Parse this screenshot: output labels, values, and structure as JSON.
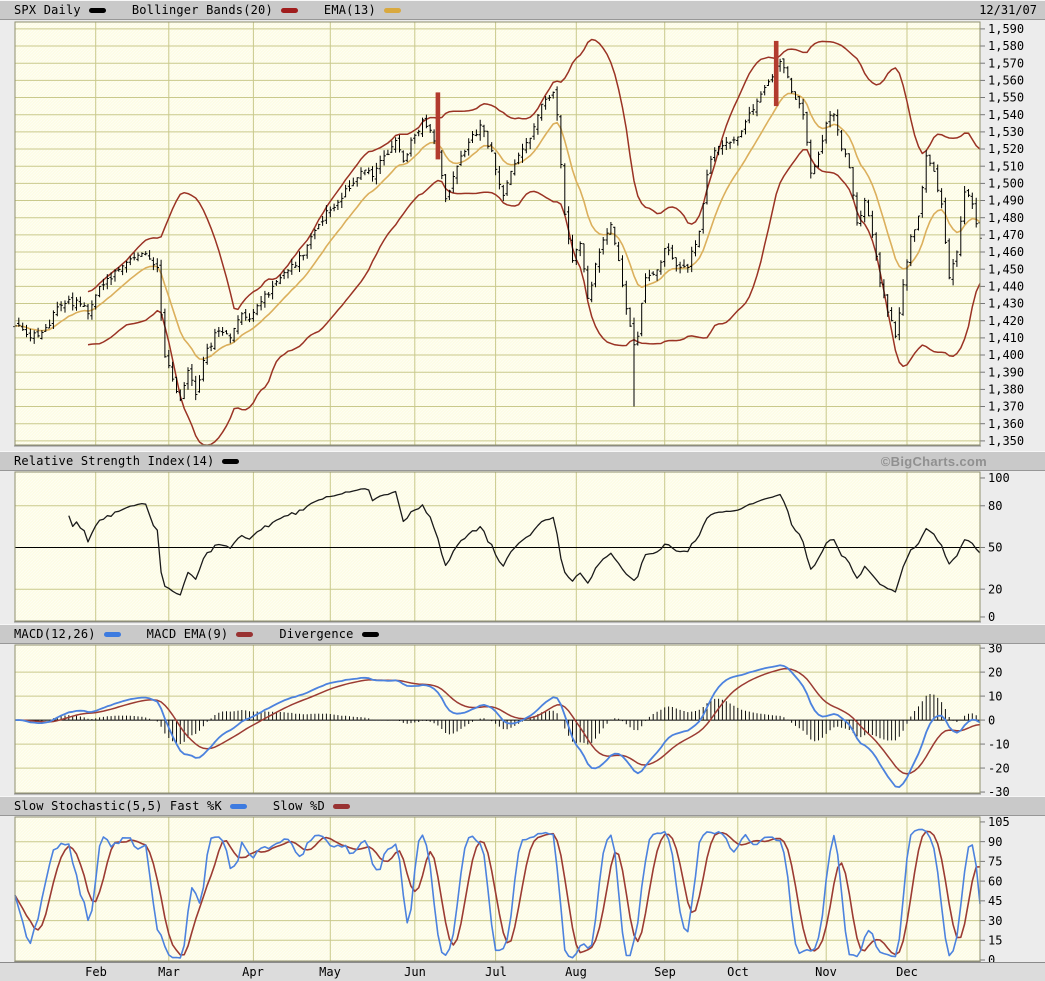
{
  "legends": {
    "main": {
      "items": [
        {
          "label": "SPX Daily",
          "color": "#000000"
        },
        {
          "label": "Bollinger Bands(20)",
          "color": "#a01d1d"
        },
        {
          "label": "EMA(13)",
          "color": "#d9a93f"
        }
      ],
      "date": "12/31/07"
    },
    "rsi": {
      "items": [
        {
          "label": "Relative Strength Index(14)",
          "color": "#000000"
        }
      ],
      "watermark": "©BigCharts.com"
    },
    "macd": {
      "items": [
        {
          "label": "MACD(12,26)",
          "color": "#3d7be0"
        },
        {
          "label": "MACD EMA(9)",
          "color": "#993333"
        },
        {
          "label": "Divergence",
          "color": "#000000"
        }
      ]
    },
    "stoch": {
      "items": [
        {
          "label": "Slow Stochastic(5,5) Fast %K",
          "color": "#3d7be0"
        },
        {
          "label": "Slow %D",
          "color": "#993333"
        }
      ]
    }
  },
  "chart_data": {
    "type": "ohlc-multi-panel",
    "symbol": "SPX",
    "interval": "Daily",
    "as_of": "12/31/07",
    "months": [
      {
        "label": "Feb",
        "day": 21
      },
      {
        "label": "Mar",
        "day": 40
      },
      {
        "label": "Apr",
        "day": 62
      },
      {
        "label": "May",
        "day": 82
      },
      {
        "label": "Jun",
        "day": 104
      },
      {
        "label": "Jul",
        "day": 125
      },
      {
        "label": "Aug",
        "day": 146
      },
      {
        "label": "Sep",
        "day": 169
      },
      {
        "label": "Oct",
        "day": 188
      },
      {
        "label": "Nov",
        "day": 211
      },
      {
        "label": "Dec",
        "day": 232
      }
    ],
    "price": {
      "days": 252,
      "ylim": [
        1350,
        1590
      ],
      "tick_step": 10,
      "tick_labels": [
        "1,590",
        "1,580",
        "1,570",
        "1,560",
        "1,550",
        "1,540",
        "1,530",
        "1,520",
        "1,510",
        "1,500",
        "1,490",
        "1,480",
        "1,470",
        "1,460",
        "1,450",
        "1,440",
        "1,430",
        "1,420",
        "1,410",
        "1,400",
        "1,390",
        "1,380",
        "1,370",
        "1,360",
        "1,350"
      ],
      "close_anchors": [
        [
          0,
          1417
        ],
        [
          4,
          1410
        ],
        [
          8,
          1416
        ],
        [
          12,
          1429
        ],
        [
          16,
          1432
        ],
        [
          19,
          1424
        ],
        [
          22,
          1440
        ],
        [
          26,
          1449
        ],
        [
          30,
          1456
        ],
        [
          34,
          1459
        ],
        [
          37,
          1451
        ],
        [
          39,
          1399
        ],
        [
          41,
          1386
        ],
        [
          43,
          1374
        ],
        [
          45,
          1391
        ],
        [
          47,
          1377
        ],
        [
          50,
          1404
        ],
        [
          53,
          1414
        ],
        [
          56,
          1410
        ],
        [
          59,
          1424
        ],
        [
          61,
          1421
        ],
        [
          64,
          1431
        ],
        [
          67,
          1440
        ],
        [
          70,
          1448
        ],
        [
          73,
          1452
        ],
        [
          76,
          1464
        ],
        [
          79,
          1476
        ],
        [
          81,
          1484
        ],
        [
          84,
          1489
        ],
        [
          87,
          1497
        ],
        [
          90,
          1507
        ],
        [
          93,
          1504
        ],
        [
          96,
          1516
        ],
        [
          99,
          1525
        ],
        [
          101,
          1513
        ],
        [
          104,
          1528
        ],
        [
          106,
          1537
        ],
        [
          108,
          1531
        ],
        [
          110,
          1518
        ],
        [
          112,
          1491
        ],
        [
          115,
          1510
        ],
        [
          118,
          1524
        ],
        [
          121,
          1534
        ],
        [
          124,
          1519
        ],
        [
          127,
          1493
        ],
        [
          129,
          1507
        ],
        [
          132,
          1520
        ],
        [
          135,
          1533
        ],
        [
          138,
          1549
        ],
        [
          140,
          1553
        ],
        [
          141,
          1540
        ],
        [
          142,
          1511
        ],
        [
          143,
          1482
        ],
        [
          145,
          1455
        ],
        [
          147,
          1465
        ],
        [
          149,
          1433
        ],
        [
          151,
          1453
        ],
        [
          153,
          1467
        ],
        [
          155,
          1476
        ],
        [
          157,
          1455
        ],
        [
          159,
          1427
        ],
        [
          161,
          1406
        ],
        [
          162,
          1411
        ],
        [
          164,
          1445
        ],
        [
          166,
          1447
        ],
        [
          168,
          1454
        ],
        [
          169,
          1462
        ],
        [
          172,
          1452
        ],
        [
          175,
          1451
        ],
        [
          178,
          1472
        ],
        [
          180,
          1505
        ],
        [
          182,
          1519
        ],
        [
          185,
          1524
        ],
        [
          188,
          1527
        ],
        [
          191,
          1541
        ],
        [
          194,
          1552
        ],
        [
          197,
          1562
        ],
        [
          199,
          1571
        ],
        [
          201,
          1562
        ],
        [
          203,
          1549
        ],
        [
          205,
          1540
        ],
        [
          207,
          1506
        ],
        [
          209,
          1517
        ],
        [
          211,
          1535
        ],
        [
          213,
          1540
        ],
        [
          215,
          1520
        ],
        [
          217,
          1509
        ],
        [
          219,
          1477
        ],
        [
          221,
          1490
        ],
        [
          223,
          1470
        ],
        [
          225,
          1442
        ],
        [
          227,
          1425
        ],
        [
          229,
          1411
        ],
        [
          231,
          1441
        ],
        [
          233,
          1469
        ],
        [
          235,
          1481
        ],
        [
          237,
          1516
        ],
        [
          239,
          1507
        ],
        [
          241,
          1488
        ],
        [
          243,
          1445
        ],
        [
          245,
          1460
        ],
        [
          247,
          1495
        ],
        [
          249,
          1488
        ],
        [
          251,
          1468
        ]
      ],
      "noise": 2.6,
      "range_noise": 3.6,
      "noise_seed": 29,
      "wick_overrides": [
        {
          "day": 161,
          "low": 1370
        }
      ],
      "event_bars": [
        {
          "day": 110,
          "from": 1514,
          "to": 1553
        },
        {
          "day": 198,
          "from": 1545,
          "to": 1583
        }
      ],
      "indicators": {
        "bollinger_period": 20,
        "bollinger_mult": 2,
        "ema_period": 13
      }
    },
    "rsi": {
      "period": 14,
      "ticks": [
        100,
        80,
        50,
        20,
        0
      ],
      "midline": 50,
      "gridlines": [
        80,
        20
      ]
    },
    "macd": {
      "fast": 12,
      "slow": 26,
      "signal": 9,
      "ticks": [
        30,
        20,
        10,
        0,
        -10,
        -20,
        -30
      ],
      "gridlines": [
        20,
        10,
        -10,
        -20
      ],
      "zero_line": 0
    },
    "stochastic": {
      "k_period": 5,
      "slowing": 3,
      "d_period": 5,
      "ticks": [
        105,
        90,
        75,
        60,
        45,
        30,
        15,
        0
      ],
      "gridlines": [
        90,
        75,
        60,
        45,
        30,
        15
      ]
    },
    "colors": {
      "background": "#fdfce4",
      "grid": "#c9c98c",
      "frame": "#8f8f6e",
      "bars": "#000000",
      "bollinger": "#9a3324",
      "ema": "#dbaf5c",
      "event_bar": "#b23b2e",
      "rsi_line": "#1a1a1a",
      "macd_line": "#4c82de",
      "macd_signal": "#9b3b33",
      "histogram": "#111111",
      "stoch_k": "#4c82de",
      "stoch_d": "#9b3b33",
      "axis_text": "#000000"
    }
  }
}
